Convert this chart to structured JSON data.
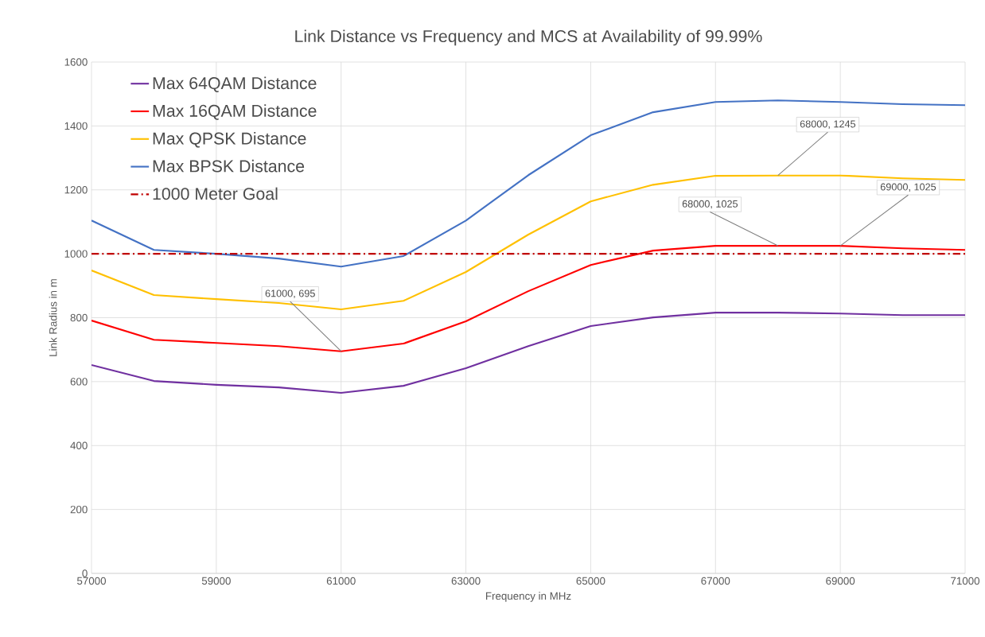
{
  "chart_data": {
    "type": "line",
    "title": "Link Distance vs Frequency and MCS at Availability of 99.99%",
    "xlabel": "Frequency  in MHz",
    "ylabel": "Link Radius in m",
    "x": [
      57000,
      58000,
      59000,
      60000,
      61000,
      62000,
      63000,
      64000,
      65000,
      66000,
      67000,
      68000,
      69000,
      70000,
      71000
    ],
    "series": [
      {
        "name": "Max 64QAM Distance",
        "color": "#7030a0",
        "values": [
          652,
          602,
          590,
          582,
          565,
          587,
          642,
          711,
          774,
          801,
          816,
          816,
          813,
          808,
          808
        ]
      },
      {
        "name": "Max 16QAM Distance",
        "color": "#ff0000",
        "values": [
          791,
          731,
          721,
          711,
          695,
          719,
          789,
          883,
          965,
          1010,
          1025,
          1025,
          1025,
          1017,
          1012
        ]
      },
      {
        "name": "Max QPSK Distance",
        "color": "#ffc000",
        "values": [
          948,
          871,
          858,
          846,
          826,
          853,
          943,
          1060,
          1164,
          1216,
          1244,
          1245,
          1245,
          1236,
          1231
        ]
      },
      {
        "name": "Max BPSK Distance",
        "color": "#4472c4",
        "values": [
          1104,
          1012,
          1000,
          985,
          960,
          993,
          1104,
          1246,
          1371,
          1443,
          1475,
          1480,
          1475,
          1468,
          1465
        ]
      }
    ],
    "ref_lines": [
      {
        "axis": "y",
        "value": 1000,
        "label": "1000 Meter Goal",
        "color": "#c00000",
        "line_style": "dashdot"
      }
    ],
    "annotations": [
      {
        "text": "61000, 695",
        "x": 61000,
        "y": 695
      },
      {
        "text": "68000, 1245",
        "x": 68000,
        "y": 1245
      },
      {
        "text": "68000, 1025",
        "x": 68000,
        "y": 1025
      },
      {
        "text": "69000, 1025",
        "x": 69000,
        "y": 1025
      }
    ],
    "xlim": [
      57000,
      71000
    ],
    "xticks": [
      57000,
      59000,
      61000,
      63000,
      65000,
      67000,
      69000,
      71000
    ],
    "ylim": [
      0,
      1600
    ],
    "yticks": [
      0,
      200,
      400,
      600,
      800,
      1000,
      1200,
      1400,
      1600
    ],
    "grid": true,
    "legend": "top left",
    "marker": "none",
    "line_style": "solid"
  }
}
